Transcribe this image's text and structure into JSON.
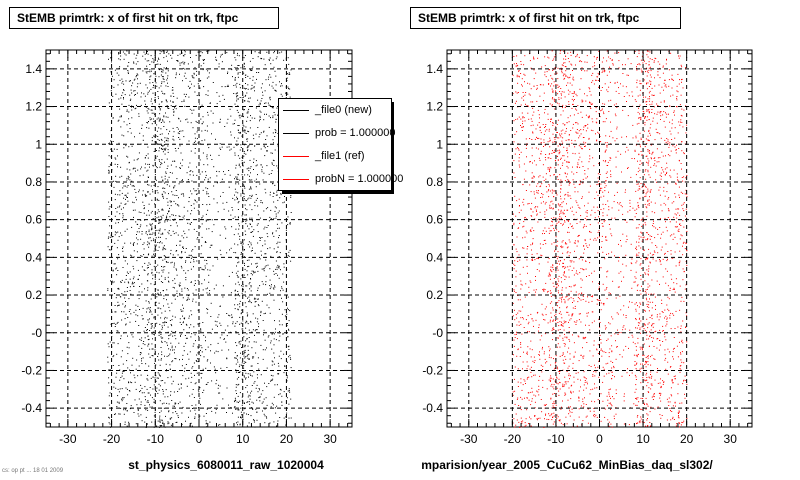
{
  "chart_data": [
    {
      "type": "scatter",
      "title": "StEMB primtrk: x of first hit on trk, ftpc",
      "xlabel": "st_physics_6080011_raw_1020004",
      "ylabel": "",
      "xlim": [
        -35,
        35
      ],
      "ylim": [
        -0.5,
        1.5
      ],
      "xticks": [
        -30,
        -20,
        -10,
        0,
        10,
        20,
        30
      ],
      "yticks": [
        -0.4,
        -0.2,
        0,
        0.2,
        0.4,
        0.6,
        0.8,
        1,
        1.2,
        1.4
      ],
      "ytick_labels": [
        "-0.4",
        "-0.2",
        "-0",
        "0.2",
        "0.4",
        "0.6",
        "0.8",
        "1",
        "1.2",
        "1.4"
      ],
      "grid": true,
      "series": [
        {
          "name": "_file0 (new)",
          "color": "#000000",
          "bands": [
            {
              "x_range": [
                -21,
                -12
              ],
              "density": "medium"
            },
            {
              "x_range": [
                -12,
                -7
              ],
              "density": "high"
            },
            {
              "x_range": [
                -7,
                2
              ],
              "density": "medium"
            },
            {
              "x_range": [
                2,
                8
              ],
              "density": "low"
            },
            {
              "x_range": [
                8,
                12
              ],
              "density": "high"
            },
            {
              "x_range": [
                12,
                21
              ],
              "density": "medium"
            }
          ]
        }
      ],
      "legend": {
        "position": "top-right",
        "entries": [
          {
            "label": "_file0 (new)",
            "color": "#000000"
          },
          {
            "label": "prob = 1.000000",
            "color": "#000000"
          },
          {
            "label": "_file1 (ref)",
            "color": "#ff0000"
          },
          {
            "label": "probN = 1.000000",
            "color": "#ff0000"
          }
        ]
      }
    },
    {
      "type": "scatter",
      "title": "StEMB primtrk: x of first hit on trk, ftpc",
      "xlabel": "mparision/year_2005_CuCu62_MinBias_daq_sl302/",
      "ylabel": "",
      "xlim": [
        -35,
        35
      ],
      "ylim": [
        -0.5,
        1.5
      ],
      "xticks": [
        -30,
        -20,
        -10,
        0,
        10,
        20,
        30
      ],
      "yticks": [
        -0.4,
        -0.2,
        0,
        0.2,
        0.4,
        0.6,
        0.8,
        1,
        1.2,
        1.4
      ],
      "ytick_labels": [
        "-0.4",
        "-0.2",
        "-0",
        "0.2",
        "0.4",
        "0.6",
        "0.8",
        "1",
        "1.2",
        "1.4"
      ],
      "grid": true,
      "series": [
        {
          "name": "_file1 (ref)",
          "color": "#ff0000",
          "bands": [
            {
              "x_range": [
                -20,
                -12
              ],
              "density": "medium"
            },
            {
              "x_range": [
                -12,
                -7
              ],
              "density": "high"
            },
            {
              "x_range": [
                -7,
                3
              ],
              "density": "medium"
            },
            {
              "x_range": [
                3,
                8
              ],
              "density": "low"
            },
            {
              "x_range": [
                8,
                12
              ],
              "density": "high"
            },
            {
              "x_range": [
                12,
                20
              ],
              "density": "medium"
            }
          ]
        }
      ]
    }
  ],
  "footer_text": "cs: op pt ... 18 01 2009"
}
